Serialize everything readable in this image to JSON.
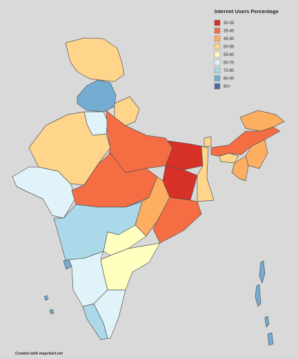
{
  "legend": {
    "title": "Internet Users Percentage",
    "items": [
      {
        "label": "30-35",
        "color": "#d73027"
      },
      {
        "label": "35-45",
        "color": "#f46d43"
      },
      {
        "label": "45-50",
        "color": "#fdae61"
      },
      {
        "label": "50-55",
        "color": "#fed58a"
      },
      {
        "label": "55-60",
        "color": "#ffffbf"
      },
      {
        "label": "60-70",
        "color": "#e0f3f8"
      },
      {
        "label": "70-80",
        "color": "#abd9e9"
      },
      {
        "label": "80-90",
        "color": "#74add1"
      },
      {
        "label": "90+",
        "color": "#4a6c9b"
      }
    ]
  },
  "footer": "Created with mapchart.net"
}
